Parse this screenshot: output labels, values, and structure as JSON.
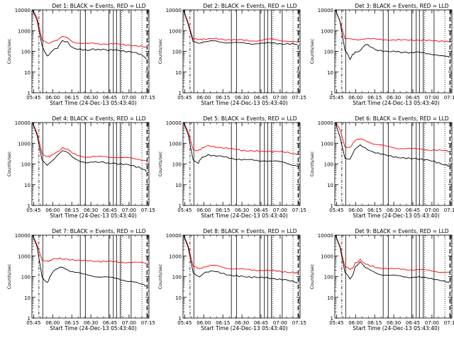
{
  "colors": {
    "events": "#000000",
    "lld": "#ff0000",
    "background": "#ffffff",
    "axis": "#000000"
  },
  "chart_data": [
    {
      "type": "line",
      "title": "Det 1: BLACK = Events, RED = LLD",
      "xlabel": "Start Time (24-Dec-13 05:43:40)",
      "ylabel": "Counts/sec",
      "yscale": "log",
      "ylim": [
        1,
        10000
      ],
      "yticks": [
        "1",
        "10",
        "100",
        "1000",
        "10000"
      ],
      "xticks": [
        "05:45",
        "06:00",
        "06:15",
        "06:30",
        "06:45",
        "07:00",
        "07:15"
      ],
      "x_minutes": [
        0,
        4,
        8,
        12,
        14,
        16,
        20,
        24,
        28,
        32,
        36,
        40,
        44,
        48,
        52,
        56,
        60,
        64,
        68,
        72,
        76,
        80,
        84,
        88,
        90
      ],
      "series": [
        {
          "name": "Events",
          "color": "#000000",
          "values": [
            12000,
            3000,
            180,
            60,
            80,
            110,
            140,
            320,
            280,
            150,
            130,
            120,
            110,
            130,
            120,
            125,
            110,
            120,
            115,
            105,
            95,
            85,
            75,
            60,
            45
          ]
        },
        {
          "name": "LLD",
          "color": "#ff0000",
          "values": [
            12000,
            4000,
            350,
            270,
            260,
            300,
            330,
            500,
            450,
            300,
            260,
            240,
            230,
            240,
            230,
            235,
            230,
            230,
            220,
            210,
            200,
            190,
            180,
            165,
            150
          ]
        }
      ]
    },
    {
      "type": "line",
      "title": "Det 2: BLACK = Events, RED = LLD",
      "xlabel": "Start Time (24-Dec-13 05:43:40)",
      "ylabel": "Counts/sec",
      "yscale": "log",
      "ylim": [
        1,
        10000
      ],
      "yticks": [
        "1",
        "10",
        "100",
        "1000",
        "10000"
      ],
      "xticks": [
        "05:45",
        "06:00",
        "06:15",
        "06:30",
        "06:45",
        "07:00",
        "07:15"
      ],
      "x_minutes": [
        0,
        4,
        8,
        12,
        14,
        16,
        20,
        24,
        28,
        32,
        36,
        40,
        44,
        48,
        52,
        56,
        60,
        64,
        68,
        72,
        76,
        80,
        84,
        88,
        90
      ],
      "series": [
        {
          "name": "Events",
          "color": "#000000",
          "values": [
            12000,
            2000,
            300,
            260,
            270,
            280,
            290,
            310,
            300,
            280,
            270,
            260,
            250,
            250,
            240,
            240,
            245,
            240,
            250,
            245,
            240,
            235,
            230,
            220,
            200
          ]
        },
        {
          "name": "LLD",
          "color": "#ff0000",
          "values": [
            12000,
            2500,
            400,
            370,
            380,
            390,
            400,
            410,
            400,
            380,
            370,
            360,
            350,
            340,
            330,
            330,
            340,
            360,
            380,
            370,
            350,
            330,
            300,
            280,
            260
          ]
        }
      ]
    },
    {
      "type": "line",
      "title": "Det 3: BLACK = Events, RED = LLD",
      "xlabel": "Start Time (24-Dec-13 05:43:40)",
      "ylabel": "Counts/sec",
      "yscale": "log",
      "ylim": [
        1,
        10000
      ],
      "yticks": [
        "1",
        "10",
        "100",
        "1000",
        "10000"
      ],
      "xticks": [
        "05:45",
        "06:00",
        "06:15",
        "06:30",
        "06:45",
        "07:00",
        "07:15"
      ],
      "x_minutes": [
        0,
        4,
        8,
        12,
        14,
        16,
        20,
        24,
        28,
        32,
        36,
        40,
        44,
        48,
        52,
        56,
        60,
        64,
        68,
        72,
        76,
        80,
        84,
        88,
        90
      ],
      "series": [
        {
          "name": "Events",
          "color": "#000000",
          "values": [
            12000,
            3000,
            120,
            40,
            70,
            90,
            110,
            220,
            170,
            120,
            110,
            100,
            95,
            100,
            90,
            95,
            85,
            90,
            85,
            80,
            75,
            70,
            60,
            55,
            50
          ]
        },
        {
          "name": "LLD",
          "color": "#ff0000",
          "values": [
            12000,
            3000,
            400,
            380,
            370,
            380,
            390,
            420,
            400,
            380,
            370,
            370,
            360,
            360,
            350,
            355,
            350,
            350,
            345,
            340,
            330,
            320,
            310,
            300,
            290
          ]
        }
      ]
    },
    {
      "type": "line",
      "title": "Det 4: BLACK = Events, RED = LLD",
      "xlabel": "Start Time (24-Dec-13 05:43:40)",
      "ylabel": "Counts/sec",
      "yscale": "log",
      "ylim": [
        1,
        10000
      ],
      "yticks": [
        "1",
        "10",
        "100",
        "1000",
        "10000"
      ],
      "xticks": [
        "05:45",
        "06:00",
        "06:15",
        "06:30",
        "06:45",
        "07:00",
        "07:15"
      ],
      "x_minutes": [
        0,
        4,
        8,
        12,
        14,
        16,
        20,
        24,
        28,
        32,
        36,
        40,
        44,
        48,
        52,
        56,
        60,
        64,
        68,
        72,
        76,
        80,
        84,
        88,
        90
      ],
      "series": [
        {
          "name": "Events",
          "color": "#000000",
          "values": [
            12000,
            2500,
            150,
            80,
            110,
            150,
            280,
            450,
            350,
            200,
            150,
            130,
            120,
            125,
            115,
            120,
            110,
            115,
            100,
            95,
            90,
            80,
            70,
            55,
            45
          ]
        },
        {
          "name": "LLD",
          "color": "#ff0000",
          "values": [
            12000,
            3000,
            300,
            220,
            230,
            280,
            400,
            600,
            500,
            320,
            260,
            230,
            220,
            230,
            220,
            225,
            215,
            220,
            210,
            200,
            190,
            180,
            170,
            160,
            150
          ]
        }
      ]
    },
    {
      "type": "line",
      "title": "Det 5: BLACK = Events, RED = LLD",
      "xlabel": "Start Time (24-Dec-13 05:43:40)",
      "ylabel": "Counts/sec",
      "yscale": "log",
      "ylim": [
        1,
        10000
      ],
      "yticks": [
        "1",
        "10",
        "100",
        "1000",
        "10000"
      ],
      "xticks": [
        "05:45",
        "06:00",
        "06:15",
        "06:30",
        "06:45",
        "07:00",
        "07:15"
      ],
      "x_minutes": [
        0,
        4,
        8,
        12,
        14,
        16,
        20,
        24,
        28,
        32,
        36,
        40,
        44,
        48,
        52,
        56,
        60,
        64,
        68,
        72,
        76,
        80,
        84,
        88,
        90
      ],
      "series": [
        {
          "name": "Events",
          "color": "#000000",
          "values": [
            12000,
            2500,
            150,
            110,
            180,
            220,
            280,
            250,
            240,
            220,
            200,
            180,
            170,
            160,
            155,
            150,
            145,
            150,
            140,
            135,
            125,
            115,
            100,
            90,
            80
          ]
        },
        {
          "name": "LLD",
          "color": "#ff0000",
          "values": [
            12000,
            3500,
            500,
            480,
            520,
            600,
            750,
            700,
            650,
            600,
            560,
            520,
            480,
            450,
            430,
            420,
            410,
            420,
            410,
            400,
            390,
            370,
            350,
            320,
            300
          ]
        }
      ]
    },
    {
      "type": "line",
      "title": "Det 6: BLACK = Events, RED = LLD",
      "xlabel": "Start Time (24-Dec-13 05:43:40)",
      "ylabel": "Counts/sec",
      "yscale": "log",
      "ylim": [
        1,
        10000
      ],
      "yticks": [
        "1",
        "10",
        "100",
        "1000",
        "10000"
      ],
      "xticks": [
        "05:45",
        "06:00",
        "06:15",
        "06:30",
        "06:45",
        "07:00",
        "07:15"
      ],
      "x_minutes": [
        0,
        4,
        8,
        12,
        14,
        16,
        20,
        24,
        28,
        32,
        36,
        40,
        44,
        48,
        52,
        56,
        60,
        64,
        68,
        72,
        76,
        80,
        84,
        88,
        90
      ],
      "series": [
        {
          "name": "Events",
          "color": "#000000",
          "values": [
            12000,
            2000,
            200,
            180,
            300,
            500,
            800,
            600,
            450,
            350,
            300,
            260,
            240,
            220,
            200,
            190,
            180,
            180,
            170,
            160,
            140,
            120,
            100,
            90,
            80
          ]
        },
        {
          "name": "LLD",
          "color": "#ff0000",
          "values": [
            12000,
            5000,
            700,
            650,
            900,
            1300,
            1600,
            1400,
            1100,
            900,
            800,
            700,
            650,
            600,
            580,
            560,
            540,
            530,
            520,
            500,
            480,
            460,
            440,
            420,
            400
          ]
        }
      ]
    },
    {
      "type": "line",
      "title": "Det 7: BLACK = Events, RED = LLD",
      "xlabel": "Start Time (24-Dec-13 05:43:40)",
      "ylabel": "Counts/sec",
      "yscale": "log",
      "ylim": [
        1,
        10000
      ],
      "yticks": [
        "1",
        "10",
        "100",
        "1000",
        "10000"
      ],
      "xticks": [
        "05:45",
        "06:00",
        "06:15",
        "06:30",
        "06:45",
        "07:00",
        "07:15"
      ],
      "x_minutes": [
        0,
        4,
        8,
        12,
        14,
        16,
        20,
        24,
        28,
        32,
        36,
        40,
        44,
        48,
        52,
        56,
        60,
        64,
        68,
        72,
        76,
        80,
        84,
        88,
        90
      ],
      "series": [
        {
          "name": "Events",
          "color": "#000000",
          "values": [
            12000,
            3000,
            100,
            50,
            90,
            150,
            250,
            300,
            220,
            170,
            150,
            130,
            120,
            110,
            100,
            95,
            90,
            85,
            80,
            70,
            60,
            55,
            45,
            40,
            35
          ]
        },
        {
          "name": "LLD",
          "color": "#ff0000",
          "values": [
            12000,
            3500,
            600,
            550,
            600,
            700,
            750,
            700,
            680,
            650,
            620,
            600,
            580,
            560,
            550,
            540,
            530,
            520,
            510,
            500,
            490,
            480,
            470,
            460,
            440
          ]
        }
      ]
    },
    {
      "type": "line",
      "title": "Det 8: BLACK = Events, RED = LLD",
      "xlabel": "Start Time (24-Dec-13 05:43:40)",
      "ylabel": "Counts/sec",
      "yscale": "log",
      "ylim": [
        1,
        10000
      ],
      "yticks": [
        "1",
        "10",
        "100",
        "1000",
        "10000"
      ],
      "xticks": [
        "05:45",
        "06:00",
        "06:15",
        "06:30",
        "06:45",
        "07:00",
        "07:15"
      ],
      "x_minutes": [
        0,
        4,
        8,
        12,
        14,
        16,
        20,
        24,
        28,
        32,
        36,
        40,
        44,
        48,
        52,
        56,
        60,
        64,
        68,
        72,
        76,
        80,
        84,
        88,
        90
      ],
      "series": [
        {
          "name": "Events",
          "color": "#000000",
          "values": [
            12000,
            2500,
            150,
            100,
            110,
            150,
            170,
            180,
            160,
            140,
            120,
            110,
            105,
            100,
            95,
            95,
            90,
            90,
            85,
            80,
            75,
            70,
            60,
            55,
            50
          ]
        },
        {
          "name": "LLD",
          "color": "#ff0000",
          "values": [
            12000,
            3000,
            300,
            250,
            260,
            300,
            320,
            340,
            310,
            280,
            260,
            240,
            230,
            220,
            215,
            210,
            205,
            200,
            195,
            190,
            180,
            170,
            160,
            155,
            150
          ]
        }
      ]
    },
    {
      "type": "line",
      "title": "Det 9: BLACK = Events, RED = LLD",
      "xlabel": "Start Time (24-Dec-13 05:43:40)",
      "ylabel": "Counts/sec",
      "yscale": "log",
      "ylim": [
        1,
        10000
      ],
      "yticks": [
        "1",
        "10",
        "100",
        "1000",
        "10000"
      ],
      "xticks": [
        "05:45",
        "06:00",
        "06:15",
        "06:30",
        "06:45",
        "07:00",
        "07:15"
      ],
      "x_minutes": [
        0,
        4,
        8,
        12,
        14,
        16,
        20,
        24,
        28,
        32,
        36,
        40,
        44,
        48,
        52,
        56,
        60,
        64,
        68,
        72,
        76,
        80,
        84,
        88,
        90
      ],
      "series": [
        {
          "name": "Events",
          "color": "#000000",
          "values": [
            12000,
            2500,
            160,
            80,
            120,
            300,
            500,
            260,
            200,
            160,
            130,
            120,
            110,
            110,
            105,
            100,
            95,
            95,
            90,
            85,
            80,
            75,
            65,
            55,
            50
          ]
        },
        {
          "name": "LLD",
          "color": "#ff0000",
          "values": [
            12000,
            3000,
            300,
            230,
            250,
            450,
            650,
            400,
            330,
            280,
            260,
            250,
            240,
            235,
            230,
            225,
            220,
            215,
            210,
            200,
            190,
            180,
            170,
            160,
            150
          ]
        }
      ]
    }
  ]
}
